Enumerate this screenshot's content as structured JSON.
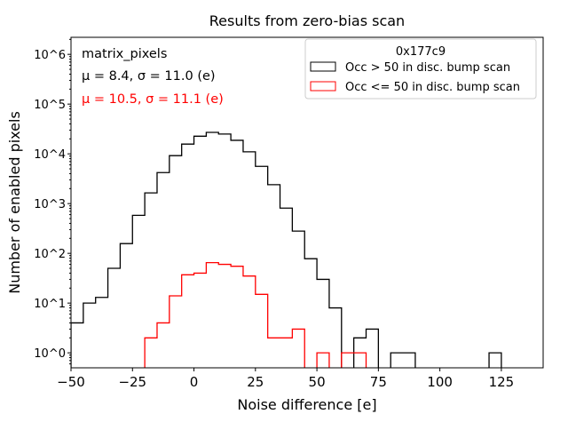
{
  "chart_data": {
    "type": "histogram",
    "title": "Results from zero-bias scan",
    "xlabel": "Noise difference [e]",
    "ylabel": "Number of enabled pixels",
    "xlim": [
      -50,
      142
    ],
    "ylim": [
      0.5,
      2200000
    ],
    "yscale": "log",
    "bin_width": 5,
    "xticks": [
      -50,
      -25,
      0,
      25,
      50,
      75,
      100,
      125
    ],
    "xtick_labels": [
      "−50",
      "−25",
      "0",
      "25",
      "50",
      "75",
      "100",
      "125"
    ],
    "yticks": [
      1,
      10,
      100,
      1000,
      10000,
      100000,
      1000000
    ],
    "ytick_labels": [
      "10^0",
      "10^1",
      "10^2",
      "10^3",
      "10^4",
      "10^5",
      "10^6"
    ],
    "series": [
      {
        "name": "Occ > 50 in disc. bump scan",
        "color": "#000000",
        "bin_starts": [
          -50,
          -45,
          -40,
          -35,
          -30,
          -25,
          -20,
          -15,
          -10,
          -5,
          0,
          5,
          10,
          15,
          20,
          25,
          30,
          35,
          40,
          45,
          50,
          55,
          60,
          65,
          70,
          75,
          80,
          85,
          90,
          95,
          100,
          105,
          110,
          115,
          120
        ],
        "values": [
          4,
          10,
          13,
          50,
          157,
          580,
          1640,
          4200,
          9200,
          15700,
          22600,
          27000,
          25000,
          18700,
          11000,
          5600,
          2400,
          810,
          280,
          78,
          30,
          8,
          0,
          2,
          3,
          0,
          1,
          1,
          0,
          0,
          0,
          0,
          0,
          0,
          1
        ]
      },
      {
        "name": "Occ <= 50 in disc. bump scan",
        "color": "#ff0000",
        "bin_starts": [
          -20,
          -15,
          -10,
          -5,
          0,
          5,
          10,
          15,
          20,
          25,
          30,
          35,
          40,
          45,
          50,
          55,
          60,
          65
        ],
        "values": [
          2,
          4,
          14,
          37,
          40,
          65,
          60,
          55,
          35,
          15,
          2,
          2,
          3,
          0,
          1,
          0,
          1,
          1
        ]
      }
    ],
    "legend": {
      "title": "0x177c9",
      "placement": "top-right"
    },
    "annotations": [
      {
        "text": "matrix_pixels",
        "color": "#000000"
      },
      {
        "text": "μ = 8.4, σ = 11.0 (e)",
        "color": "#000000"
      },
      {
        "text": "μ = 10.5, σ = 11.1 (e)",
        "color": "#ff0000"
      }
    ]
  }
}
